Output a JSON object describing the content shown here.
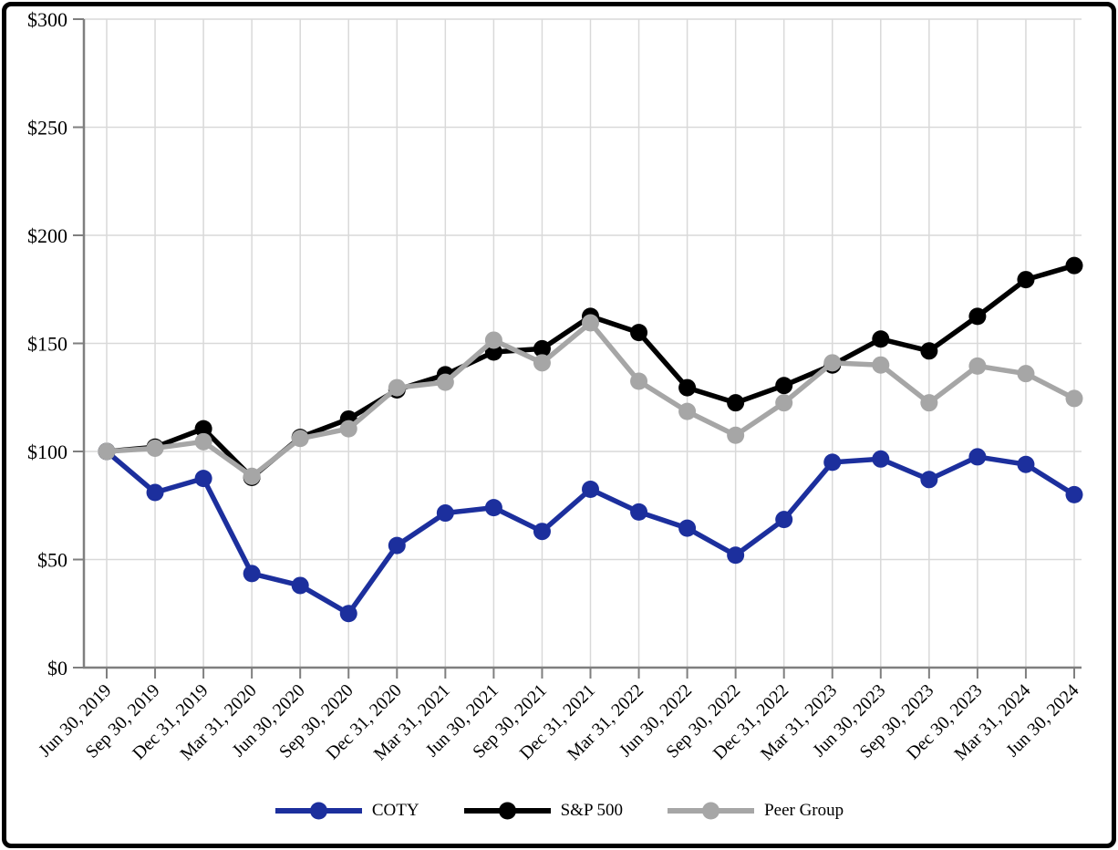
{
  "chart_data": {
    "type": "line",
    "title": "",
    "xlabel": "",
    "ylabel": "",
    "grid": true,
    "legend_position": "bottom",
    "ylim": [
      0,
      300
    ],
    "y_tick_step": 50,
    "y_tick_labels": [
      "$300",
      "$250",
      "$200",
      "$150",
      "$100",
      "$50",
      "$0"
    ],
    "x": [
      "Jun 30, 2019",
      "Sep 30, 2019",
      "Dec 31, 2019",
      "Mar 31, 2020",
      "Jun 30, 2020",
      "Sep 30, 2020",
      "Dec 31, 2020",
      "Mar 31, 2021",
      "Jun 30, 2021",
      "Sep 30, 2021",
      "Dec 31, 2021",
      "Mar 31, 2022",
      "Jun 30, 2022",
      "Sep 30, 2022",
      "Dec 31, 2022",
      "Mar 31, 2023",
      "Jun 30, 2023",
      "Sep 30, 2023",
      "Dec 30, 2023",
      "Mar 31, 2024",
      "Jun 30, 2024"
    ],
    "series": [
      {
        "id": "coty",
        "name": "COTY",
        "color": "#1C2F9D",
        "values": [
          100,
          81,
          87.5,
          43.5,
          38,
          25,
          56.5,
          71.5,
          74,
          63,
          82.5,
          72,
          64.5,
          52,
          68.5,
          95,
          96.5,
          87,
          97.5,
          94,
          80
        ]
      },
      {
        "id": "sp500",
        "name": "S&P 500",
        "color": "#000000",
        "values": [
          100,
          102,
          110.5,
          88,
          106.5,
          115,
          128.5,
          135.5,
          146,
          147.5,
          162.5,
          155,
          129.5,
          122.5,
          130.5,
          140,
          152,
          146.5,
          162.5,
          179.5,
          186
        ]
      },
      {
        "id": "peer-group",
        "name": "Peer Group",
        "color": "#A6A6A6",
        "values": [
          100,
          101.5,
          104.5,
          88.5,
          106,
          110.5,
          129.5,
          132,
          151.5,
          141,
          159.5,
          132.5,
          118.5,
          107.5,
          122.5,
          141,
          140,
          122.5,
          139.5,
          136,
          124.5
        ]
      }
    ]
  },
  "styles": {
    "background": "#FFFFFF",
    "border_color": "#000000",
    "gridline_color": "#D9D9D9",
    "axis_color": "#7F7F7F",
    "text_color": "#000000"
  }
}
